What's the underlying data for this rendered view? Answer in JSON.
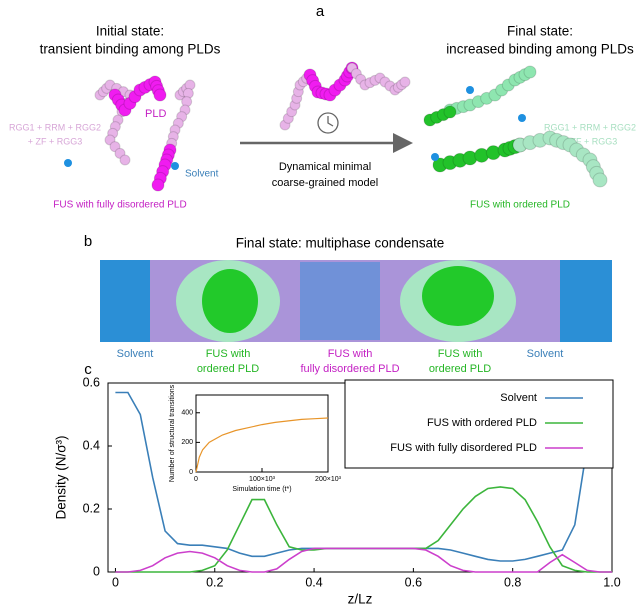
{
  "panel_a": {
    "label": "a",
    "left_title": [
      "Initial state:",
      "transient binding among PLDs"
    ],
    "right_title": [
      "Final state:",
      "increased binding among PLDs"
    ],
    "left_pld": "PLD",
    "left_domains": [
      "RGG1 + RRM + RGG2",
      "+ ZF + RGG3"
    ],
    "left_solvent": "Solvent",
    "left_caption": "FUS with fully disordered PLD",
    "arrow_caption": [
      "Dynamical minimal",
      "coarse-grained model"
    ],
    "right_domains": [
      "RGG1 + RRM + RGG2",
      "+ ZF + RGG3"
    ],
    "right_caption": "FUS with ordered PLD"
  },
  "panel_b": {
    "label": "b",
    "title": "Final state: multiphase condensate",
    "regions": [
      [
        "Solvent"
      ],
      [
        "FUS with",
        "ordered PLD"
      ],
      [
        "FUS with",
        "fully disordered PLD"
      ],
      [
        "FUS with",
        "ordered PLD"
      ],
      [
        "Solvent"
      ]
    ]
  },
  "panel_c_label": "c",
  "chart_data": [
    {
      "type": "line",
      "x_label": "z/Lz",
      "y_label": "Density (N/σ³)",
      "xlim": [
        -0.015,
        1.0
      ],
      "ylim": [
        0,
        0.6
      ],
      "xticks": [
        0,
        0.2,
        0.4,
        0.6,
        0.8,
        {
          "value": 1,
          "label": "1.0"
        }
      ],
      "yticks": [
        0,
        0.2,
        0.4,
        0.6
      ],
      "legend": "upper right",
      "x": [
        0,
        0.025,
        0.05,
        0.075,
        0.1,
        0.125,
        0.15,
        0.175,
        0.2,
        0.225,
        0.25,
        0.275,
        0.3,
        0.325,
        0.35,
        0.375,
        0.4,
        0.425,
        0.45,
        0.475,
        0.5,
        0.525,
        0.55,
        0.575,
        0.6,
        0.625,
        0.65,
        0.675,
        0.7,
        0.725,
        0.75,
        0.775,
        0.8,
        0.825,
        0.85,
        0.875,
        0.9,
        0.925,
        0.95,
        0.975,
        1.0
      ],
      "series": [
        {
          "name": "Solvent",
          "color": "#3a7fb8",
          "values": [
            0.57,
            0.57,
            0.5,
            0.3,
            0.13,
            0.09,
            0.085,
            0.085,
            0.08,
            0.075,
            0.06,
            0.05,
            0.05,
            0.06,
            0.07,
            0.075,
            0.075,
            0.075,
            0.075,
            0.075,
            0.075,
            0.075,
            0.075,
            0.075,
            0.075,
            0.075,
            0.075,
            0.07,
            0.06,
            0.05,
            0.04,
            0.035,
            0.035,
            0.04,
            0.05,
            0.06,
            0.07,
            0.15,
            0.4,
            0.55,
            0.57
          ]
        },
        {
          "name": "FUS with ordered PLD",
          "color": "#3cb53c",
          "values": [
            0,
            0,
            0,
            0,
            0,
            0,
            0,
            0.005,
            0.02,
            0.07,
            0.15,
            0.23,
            0.23,
            0.15,
            0.08,
            0.07,
            0.07,
            0.075,
            0.075,
            0.075,
            0.075,
            0.075,
            0.075,
            0.075,
            0.075,
            0.075,
            0.1,
            0.15,
            0.2,
            0.24,
            0.265,
            0.27,
            0.265,
            0.23,
            0.16,
            0.08,
            0.02,
            0.005,
            0,
            0,
            0
          ]
        },
        {
          "name": "FUS with fully disordered PLD",
          "color": "#cc3fcc",
          "values": [
            0,
            0,
            0.005,
            0.02,
            0.045,
            0.06,
            0.065,
            0.06,
            0.045,
            0.02,
            0.005,
            0,
            0,
            0.01,
            0.04,
            0.065,
            0.075,
            0.075,
            0.075,
            0.075,
            0.075,
            0.075,
            0.075,
            0.075,
            0.075,
            0.07,
            0.05,
            0.02,
            0.005,
            0,
            0,
            0,
            0,
            0,
            0,
            0.03,
            0.055,
            0.03,
            0.005,
            0,
            0
          ]
        }
      ]
    },
    {
      "type": "line",
      "x_label": "Simulation time (t*)",
      "y_label": "Number of structural transitions",
      "xlim": [
        0,
        200000
      ],
      "ylim": [
        0,
        520
      ],
      "xticks": [
        0,
        {
          "value": 100000,
          "label": "100×10³"
        },
        {
          "value": 200000,
          "label": "200×10³"
        }
      ],
      "yticks": [
        0,
        200,
        400
      ],
      "x": [
        0,
        5000,
        10000,
        20000,
        40000,
        60000,
        80000,
        100000,
        120000,
        140000,
        160000,
        180000,
        200000
      ],
      "series": [
        {
          "color": "#e8952a",
          "values": [
            0,
            100,
            150,
            200,
            250,
            280,
            300,
            320,
            335,
            345,
            355,
            360,
            365
          ]
        }
      ]
    }
  ]
}
